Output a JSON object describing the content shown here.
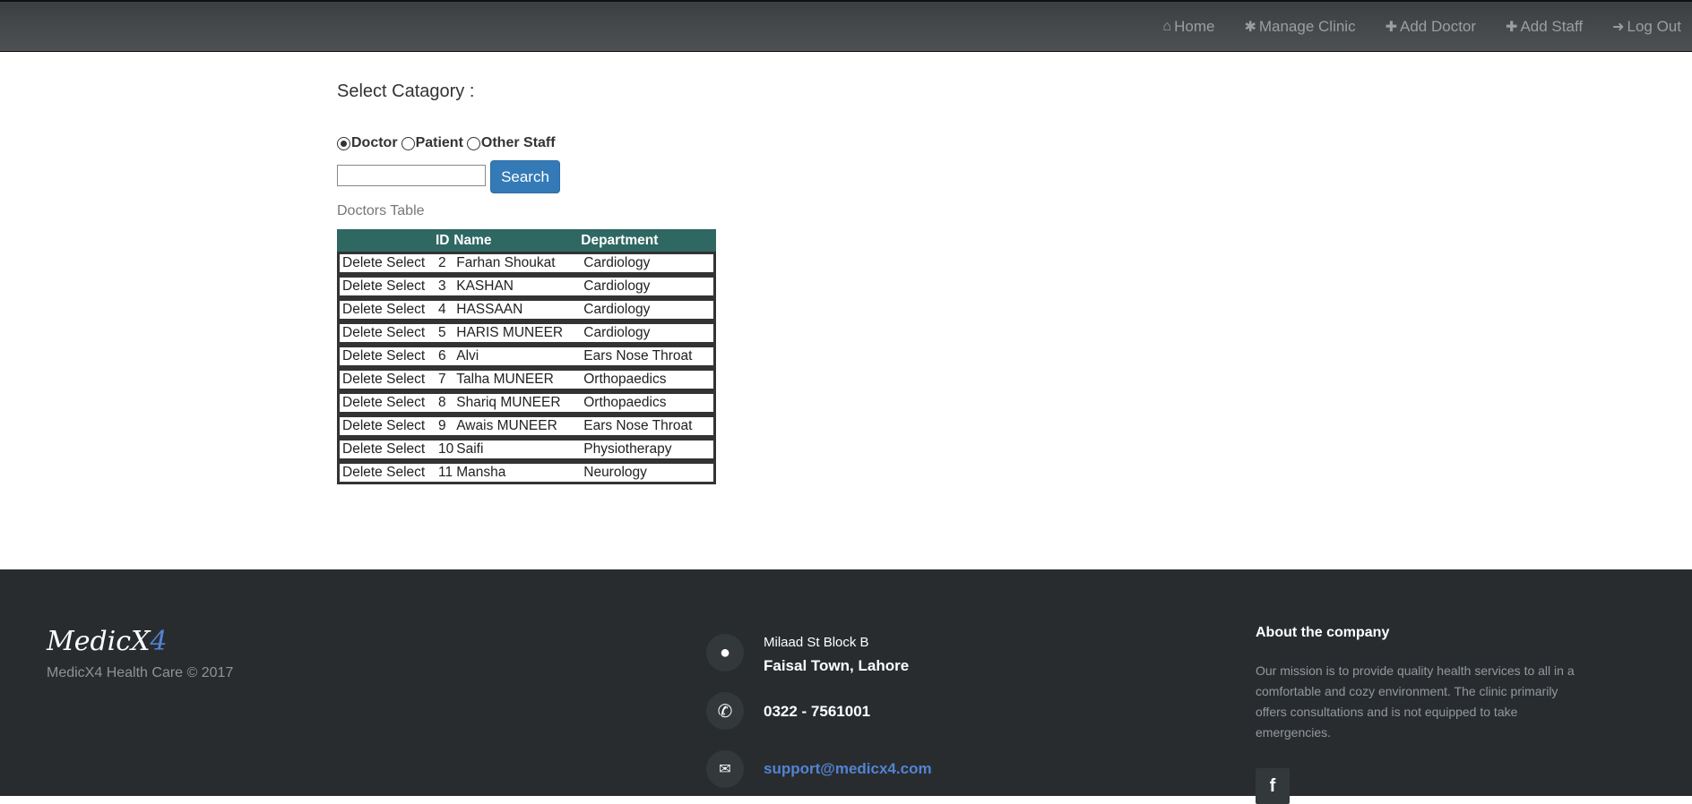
{
  "nav": {
    "items": [
      {
        "label": "Home",
        "icon": "home-icon",
        "glyph": "⌂"
      },
      {
        "label": "Manage Clinic",
        "icon": "gear-icon",
        "glyph": "✱"
      },
      {
        "label": "Add Doctor",
        "icon": "plus-icon",
        "glyph": "✚"
      },
      {
        "label": "Add Staff",
        "icon": "plus-icon",
        "glyph": "✚"
      },
      {
        "label": "Log Out",
        "icon": "logout-icon",
        "glyph": "➜"
      }
    ]
  },
  "main": {
    "title": "Select Catagory :",
    "radios": [
      {
        "label": "Doctor",
        "checked": true
      },
      {
        "label": "Patient",
        "checked": false
      },
      {
        "label": "Other Staff",
        "checked": false
      }
    ],
    "search": {
      "value": "",
      "placeholder": "",
      "button": "Search"
    },
    "table_caption": "Doctors Table",
    "columns": [
      "",
      "ID",
      "Name",
      "Department"
    ],
    "rows": [
      {
        "del": "Delete",
        "sel": "Select",
        "id": "2",
        "name": "Farhan Shoukat",
        "dept": "Cardiology"
      },
      {
        "del": "Delete",
        "sel": "Select",
        "id": "3",
        "name": "KASHAN",
        "dept": "Cardiology"
      },
      {
        "del": "Delete",
        "sel": "Select",
        "id": "4",
        "name": "HASSAAN",
        "dept": "Cardiology"
      },
      {
        "del": "Delete",
        "sel": "Select",
        "id": "5",
        "name": "HARIS MUNEER",
        "dept": "Cardiology"
      },
      {
        "del": "Delete",
        "sel": "Select",
        "id": "6",
        "name": "Alvi",
        "dept": "Ears Nose Throat"
      },
      {
        "del": "Delete",
        "sel": "Select",
        "id": "7",
        "name": "Talha MUNEER",
        "dept": "Orthopaedics"
      },
      {
        "del": "Delete",
        "sel": "Select",
        "id": "8",
        "name": "Shariq MUNEER",
        "dept": "Orthopaedics"
      },
      {
        "del": "Delete",
        "sel": "Select",
        "id": "9",
        "name": "Awais MUNEER",
        "dept": "Ears Nose Throat"
      },
      {
        "del": "Delete",
        "sel": "Select",
        "id": "10",
        "name": "Saifi",
        "dept": "Physiotherapy"
      },
      {
        "del": "Delete",
        "sel": "Select",
        "id": "11",
        "name": "Mansha",
        "dept": "Neurology"
      }
    ]
  },
  "footer": {
    "logo_main": "MedicX",
    "logo_accent": "4",
    "copyright": "MedicX4 Health Care © 2017",
    "address_line1": "Milaad St Block B",
    "address_line2": "Faisal Town, Lahore",
    "phone": "0322 - 7561001",
    "email": "support@medicx4.com",
    "about_title": "About the company",
    "about_text": "Our mission is to provide quality health services to all in a comfortable and cozy environment. The clinic primarily offers consultations and is not equipped to take emergencies.",
    "facebook": "f",
    "colors": {
      "bg": "#292c2f",
      "link": "#5383d3"
    }
  }
}
